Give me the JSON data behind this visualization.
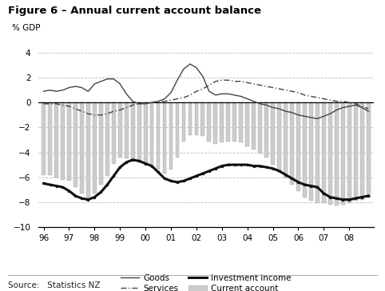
{
  "title": "Figure 6 – Annual current account balance",
  "ylabel": "% GDP",
  "source": "Source:   Statistics NZ",
  "ylim": [
    -10,
    4.5
  ],
  "yticks": [
    -10,
    -8,
    -6,
    -4,
    -2,
    0,
    2,
    4
  ],
  "xtick_labels": [
    "96",
    "97",
    "98",
    "99",
    "00",
    "01",
    "02",
    "03",
    "04",
    "05",
    "06",
    "07",
    "08"
  ],
  "background_color": "#ffffff",
  "bar_color": "#cccccc",
  "bar_edge_color": "#aaaaaa",
  "goods_color": "#444444",
  "services_color": "#444444",
  "investment_color": "#111111",
  "goods": [
    0.9,
    1.0,
    0.9,
    1.0,
    1.2,
    1.3,
    1.2,
    0.9,
    1.5,
    1.7,
    1.9,
    1.9,
    1.5,
    0.7,
    0.1,
    -0.1,
    -0.1,
    0.0,
    0.1,
    0.3,
    0.8,
    1.8,
    2.7,
    3.1,
    2.8,
    2.1,
    0.9,
    0.6,
    0.7,
    0.7,
    0.6,
    0.5,
    0.3,
    0.1,
    -0.1,
    -0.2,
    -0.4,
    -0.5,
    -0.7,
    -0.8,
    -1.0,
    -1.1,
    -1.2,
    -1.3,
    -1.1,
    -0.9,
    -0.6,
    -0.4,
    -0.3,
    -0.2,
    -0.4,
    -0.7
  ],
  "services": [
    -0.1,
    -0.1,
    -0.1,
    -0.2,
    -0.3,
    -0.5,
    -0.7,
    -0.9,
    -1.0,
    -1.0,
    -0.9,
    -0.7,
    -0.6,
    -0.4,
    -0.2,
    -0.1,
    0.0,
    0.0,
    0.1,
    0.1,
    0.2,
    0.3,
    0.4,
    0.6,
    0.9,
    1.1,
    1.4,
    1.7,
    1.8,
    1.8,
    1.7,
    1.7,
    1.6,
    1.5,
    1.4,
    1.3,
    1.2,
    1.1,
    1.0,
    0.9,
    0.8,
    0.6,
    0.5,
    0.4,
    0.3,
    0.2,
    0.1,
    0.1,
    0.0,
    -0.1,
    -0.3,
    -0.5
  ],
  "investment_income": [
    -6.5,
    -6.6,
    -6.7,
    -6.8,
    -7.1,
    -7.5,
    -7.7,
    -7.8,
    -7.6,
    -7.2,
    -6.6,
    -5.9,
    -5.2,
    -4.8,
    -4.6,
    -4.7,
    -4.9,
    -5.1,
    -5.6,
    -6.1,
    -6.3,
    -6.4,
    -6.3,
    -6.1,
    -5.9,
    -5.7,
    -5.5,
    -5.3,
    -5.1,
    -5.0,
    -5.0,
    -5.0,
    -5.0,
    -5.1,
    -5.1,
    -5.2,
    -5.3,
    -5.5,
    -5.8,
    -6.1,
    -6.4,
    -6.6,
    -6.7,
    -6.8,
    -7.3,
    -7.6,
    -7.7,
    -7.8,
    -7.8,
    -7.7,
    -7.6,
    -7.5
  ],
  "current_account": [
    -5.8,
    -5.8,
    -6.0,
    -6.2,
    -6.3,
    -6.8,
    -7.3,
    -7.7,
    -7.3,
    -6.6,
    -5.9,
    -4.9,
    -4.4,
    -4.5,
    -4.7,
    -4.8,
    -4.9,
    -5.0,
    -5.4,
    -5.7,
    -5.4,
    -4.4,
    -3.1,
    -2.6,
    -2.6,
    -2.7,
    -3.1,
    -3.3,
    -3.2,
    -3.1,
    -3.1,
    -3.2,
    -3.5,
    -3.8,
    -4.1,
    -4.4,
    -5.0,
    -5.6,
    -6.1,
    -6.6,
    -7.1,
    -7.6,
    -7.9,
    -8.1,
    -8.1,
    -8.2,
    -8.3,
    -8.2,
    -8.1,
    -7.9,
    -7.8,
    -7.6
  ]
}
